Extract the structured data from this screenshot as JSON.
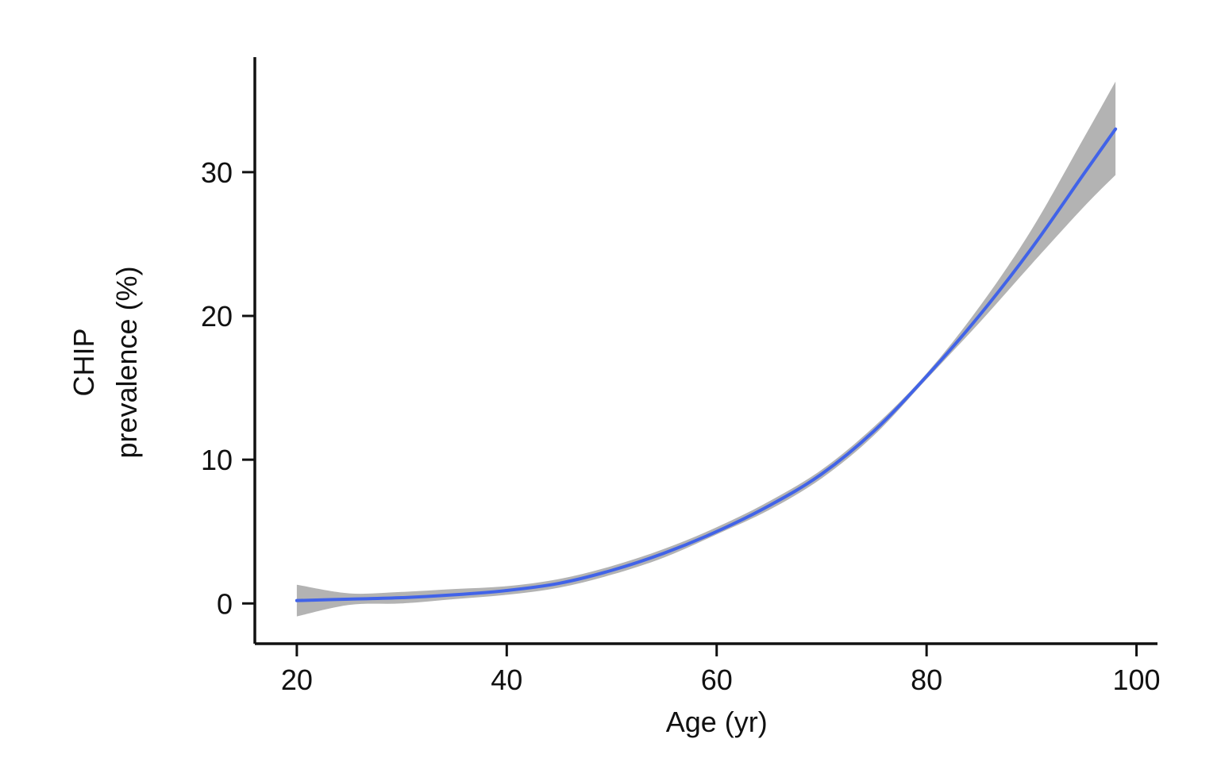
{
  "chart_data": {
    "type": "line",
    "title": "",
    "xlabel": "Age (yr)",
    "ylabel_lines": [
      "CHIP",
      "prevalence (%)"
    ],
    "xlim": [
      16,
      102
    ],
    "ylim": [
      -2.8,
      38
    ],
    "x_ticks": [
      20,
      40,
      60,
      80,
      100
    ],
    "y_ticks": [
      0,
      10,
      20,
      30
    ],
    "grid": false,
    "legend": "none",
    "colors": {
      "line": "#4163e8",
      "band": "#b3b3b3",
      "axis": "#111111"
    },
    "series": [
      {
        "x": [
          20,
          25,
          30,
          35,
          40,
          45,
          50,
          55,
          60,
          65,
          70,
          75,
          80,
          85,
          90,
          95,
          98
        ],
        "y": [
          0.2,
          0.3,
          0.4,
          0.6,
          0.9,
          1.4,
          2.3,
          3.5,
          5.0,
          6.8,
          9.0,
          12.0,
          15.8,
          20.0,
          24.7,
          29.9,
          33.0
        ],
        "lower": [
          -0.9,
          -0.1,
          0.0,
          0.3,
          0.6,
          1.1,
          2.0,
          3.2,
          4.8,
          6.5,
          8.7,
          11.7,
          15.6,
          19.5,
          23.6,
          27.6,
          29.8
        ],
        "upper": [
          1.3,
          0.7,
          0.8,
          1.0,
          1.2,
          1.7,
          2.6,
          3.8,
          5.3,
          7.1,
          9.3,
          12.3,
          16.0,
          20.6,
          26.0,
          32.4,
          36.3
        ]
      }
    ]
  }
}
